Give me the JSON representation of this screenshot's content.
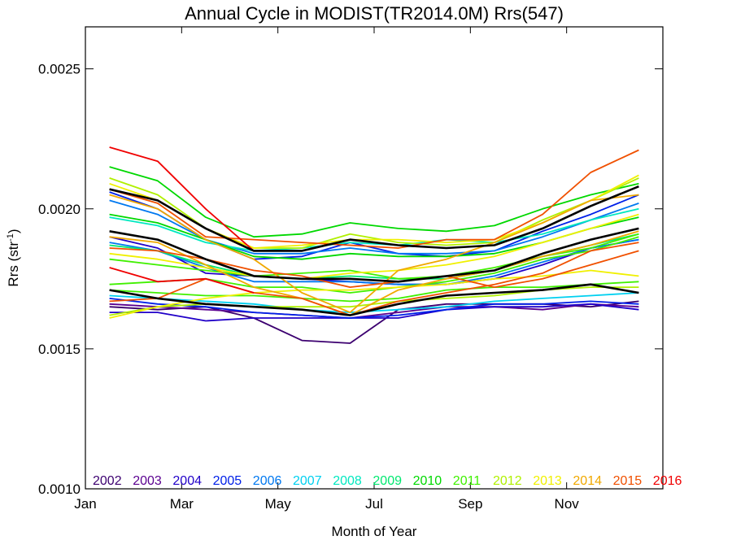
{
  "chart_data": {
    "type": "line",
    "title": "Annual Cycle in MODIST(TR2014.0M) Rrs(547)",
    "xlabel": "Month of Year",
    "ylabel_main": "Rrs (str",
    "ylabel_sup": "-1",
    "ylabel_close": ")",
    "xlim": [
      1,
      13
    ],
    "ylim": [
      0.001,
      0.00265
    ],
    "x_ticks": [
      {
        "x": 1,
        "label": "Jan"
      },
      {
        "x": 3,
        "label": "Mar"
      },
      {
        "x": 5,
        "label": "May"
      },
      {
        "x": 7,
        "label": "Jul"
      },
      {
        "x": 9,
        "label": "Sep"
      },
      {
        "x": 11,
        "label": "Nov"
      }
    ],
    "y_ticks": [
      {
        "y": 0.001,
        "label": "0.0010"
      },
      {
        "y": 0.0015,
        "label": "0.0015"
      },
      {
        "y": 0.002,
        "label": "0.0020"
      },
      {
        "y": 0.0025,
        "label": "0.0025"
      }
    ],
    "x": [
      1.5,
      2.5,
      3.5,
      4.5,
      5.5,
      6.5,
      7.5,
      8.5,
      9.5,
      10.5,
      11.5,
      12.5
    ],
    "legend": [
      {
        "label": "2002",
        "color": "#3c0070"
      },
      {
        "label": "2003",
        "color": "#5a0090"
      },
      {
        "label": "2004",
        "color": "#2000c8"
      },
      {
        "label": "2005",
        "color": "#0020e8"
      },
      {
        "label": "2006",
        "color": "#0078f0"
      },
      {
        "label": "2007",
        "color": "#00d0f0"
      },
      {
        "label": "2008",
        "color": "#00e8c0"
      },
      {
        "label": "2009",
        "color": "#00e870"
      },
      {
        "label": "2010",
        "color": "#00d800"
      },
      {
        "label": "2011",
        "color": "#40f000"
      },
      {
        "label": "2012",
        "color": "#b0f000"
      },
      {
        "label": "2013",
        "color": "#f0f000"
      },
      {
        "label": "2014",
        "color": "#f0a800"
      },
      {
        "label": "2015",
        "color": "#f05000"
      },
      {
        "label": "2016",
        "color": "#f00000"
      }
    ],
    "series": [
      {
        "color": "#3c0070",
        "values": [
          0.00165,
          0.00164,
          0.00165,
          0.00161,
          0.00153,
          0.00152,
          0.00164,
          0.00166,
          0.00166,
          0.00166,
          0.00165,
          0.00167
        ]
      },
      {
        "color": "#5a0090",
        "values": [
          0.00166,
          0.00165,
          0.00164,
          0.00163,
          0.00162,
          0.00161,
          0.00163,
          0.00165,
          0.00165,
          0.00164,
          0.00166,
          0.00165
        ]
      },
      {
        "color": "#2000c8",
        "values": [
          0.0019,
          0.00186,
          0.00177,
          0.00176,
          0.00175,
          0.00174,
          0.00173,
          0.00173,
          0.00175,
          0.0018,
          0.00186,
          0.00189
        ]
      },
      {
        "color": "#2000c8",
        "values": [
          0.00163,
          0.00163,
          0.0016,
          0.00161,
          0.00161,
          0.00161,
          0.00161,
          0.00164,
          0.00165,
          0.00165,
          0.00166,
          0.00164
        ]
      },
      {
        "color": "#0020e8",
        "values": [
          0.00206,
          0.002,
          0.00189,
          0.00182,
          0.00183,
          0.00188,
          0.00184,
          0.00183,
          0.00185,
          0.00192,
          0.00198,
          0.00205
        ]
      },
      {
        "color": "#0020e8",
        "values": [
          0.00168,
          0.00166,
          0.00165,
          0.00163,
          0.00162,
          0.00161,
          0.00162,
          0.00164,
          0.00166,
          0.00166,
          0.00167,
          0.00166
        ]
      },
      {
        "color": "#0078f0",
        "values": [
          0.00203,
          0.00198,
          0.00189,
          0.00184,
          0.00184,
          0.00186,
          0.00184,
          0.00184,
          0.00185,
          0.0019,
          0.00196,
          0.00202
        ]
      },
      {
        "color": "#0078f0",
        "values": [
          0.00188,
          0.00185,
          0.00179,
          0.00174,
          0.00174,
          0.00174,
          0.00173,
          0.00173,
          0.00176,
          0.00181,
          0.00186,
          0.00189
        ]
      },
      {
        "color": "#00d0f0",
        "values": [
          0.00169,
          0.00168,
          0.00167,
          0.00166,
          0.00164,
          0.00163,
          0.00164,
          0.00165,
          0.00167,
          0.00168,
          0.00169,
          0.0017
        ]
      },
      {
        "color": "#00e8c0",
        "values": [
          0.00197,
          0.00194,
          0.00188,
          0.00185,
          0.00186,
          0.00188,
          0.00187,
          0.00189,
          0.00188,
          0.00191,
          0.00196,
          0.002
        ]
      },
      {
        "color": "#00e870",
        "values": [
          0.00187,
          0.00185,
          0.0018,
          0.00176,
          0.00175,
          0.00176,
          0.00175,
          0.00175,
          0.00178,
          0.00183,
          0.00187,
          0.00191
        ]
      },
      {
        "color": "#00d800",
        "values": [
          0.00215,
          0.0021,
          0.00197,
          0.0019,
          0.00191,
          0.00195,
          0.00193,
          0.00192,
          0.00194,
          0.002,
          0.00205,
          0.00209
        ]
      },
      {
        "color": "#00d800",
        "values": [
          0.00198,
          0.00195,
          0.00189,
          0.00183,
          0.00182,
          0.00184,
          0.00183,
          0.00183,
          0.00184,
          0.00188,
          0.00193,
          0.00197
        ]
      },
      {
        "color": "#40f000",
        "values": [
          0.00173,
          0.00174,
          0.00175,
          0.00172,
          0.00172,
          0.0017,
          0.00172,
          0.00174,
          0.00177,
          0.00182,
          0.00185,
          0.0019
        ]
      },
      {
        "color": "#40f000",
        "values": [
          0.00182,
          0.0018,
          0.00178,
          0.00176,
          0.00177,
          0.00178,
          0.00175,
          0.00176,
          0.00179,
          0.00183,
          0.00186,
          0.00191
        ]
      },
      {
        "color": "#40f000",
        "values": [
          0.00171,
          0.0017,
          0.00169,
          0.00169,
          0.00168,
          0.00167,
          0.00168,
          0.00171,
          0.00172,
          0.00172,
          0.00173,
          0.00174
        ]
      },
      {
        "color": "#b0f000",
        "values": [
          0.00211,
          0.00205,
          0.00193,
          0.00186,
          0.00186,
          0.00191,
          0.00188,
          0.00187,
          0.00188,
          0.00196,
          0.00203,
          0.00211
        ]
      },
      {
        "color": "#b0f000",
        "values": [
          0.00162,
          0.00165,
          0.00166,
          0.00165,
          0.00165,
          0.00165,
          0.00167,
          0.00168,
          0.00169,
          0.00171,
          0.00172,
          0.00172
        ]
      },
      {
        "color": "#f0f000",
        "values": [
          0.00209,
          0.00203,
          0.00193,
          0.00186,
          0.00187,
          0.00189,
          0.00189,
          0.00188,
          0.00189,
          0.00195,
          0.00203,
          0.00212
        ]
      },
      {
        "color": "#f0f000",
        "values": [
          0.00161,
          0.00165,
          0.00168,
          0.0017,
          0.00171,
          0.00171,
          0.00172,
          0.00173,
          0.00175,
          0.00176,
          0.00178,
          0.00176
        ]
      },
      {
        "color": "#f0f000",
        "values": [
          0.00184,
          0.00182,
          0.00179,
          0.00176,
          0.00175,
          0.00177,
          0.00178,
          0.0018,
          0.00183,
          0.00188,
          0.00193,
          0.00198
        ]
      },
      {
        "color": "#f0a800",
        "values": [
          0.00205,
          0.002,
          0.00189,
          0.00182,
          0.0017,
          0.00163,
          0.00178,
          0.00182,
          0.00188,
          0.00195,
          0.00203,
          0.00205
        ]
      },
      {
        "color": "#f0a800",
        "values": [
          0.0019,
          0.00188,
          0.0018,
          0.00172,
          0.00168,
          0.00162,
          0.00171,
          0.00175,
          0.00178,
          0.00183,
          0.00187,
          0.00192
        ]
      },
      {
        "color": "#f05000",
        "values": [
          0.00186,
          0.00185,
          0.00182,
          0.00178,
          0.00176,
          0.00172,
          0.00174,
          0.00176,
          0.00172,
          0.00175,
          0.0018,
          0.00185
        ]
      },
      {
        "color": "#f05000",
        "values": [
          0.00207,
          0.00202,
          0.0019,
          0.00189,
          0.00188,
          0.00187,
          0.00186,
          0.00189,
          0.00189,
          0.00198,
          0.00213,
          0.00221
        ]
      },
      {
        "color": "#f05000",
        "values": [
          0.00167,
          0.00168,
          0.00175,
          0.0017,
          0.00168,
          0.00162,
          0.00167,
          0.0017,
          0.00173,
          0.00177,
          0.00185,
          0.00188
        ]
      },
      {
        "color": "#f00000",
        "values": [
          0.00222,
          0.00217,
          0.002,
          0.00185,
          null,
          null,
          null,
          null,
          null,
          null,
          null,
          null
        ]
      },
      {
        "color": "#f00000",
        "values": [
          0.00179,
          0.00174,
          0.00175,
          0.0017,
          null,
          null,
          null,
          null,
          null,
          null,
          null,
          null
        ]
      },
      {
        "color": "#000000",
        "values": [
          0.00207,
          0.00203,
          0.00193,
          0.00185,
          0.00185,
          0.00189,
          0.00187,
          0.00186,
          0.00187,
          0.00193,
          0.00201,
          0.00208
        ]
      },
      {
        "color": "#000000",
        "values": [
          0.00192,
          0.00189,
          0.00182,
          0.00176,
          0.00175,
          0.00175,
          0.00174,
          0.00176,
          0.00178,
          0.00184,
          0.00189,
          0.00193
        ]
      },
      {
        "color": "#000000",
        "values": [
          0.00171,
          0.00168,
          0.00166,
          0.00165,
          0.00164,
          0.00162,
          0.00166,
          0.00169,
          0.0017,
          0.00171,
          0.00173,
          0.0017
        ]
      }
    ]
  }
}
